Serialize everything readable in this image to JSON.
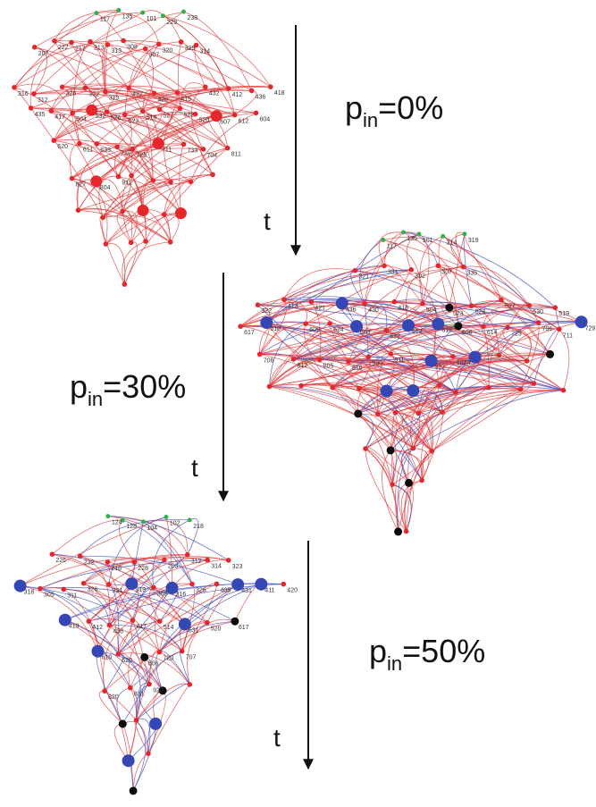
{
  "panels": [
    {
      "label_main": "p",
      "label_sub": "in",
      "label_value": "=0%",
      "node_labels": [
        "117",
        "135",
        "101",
        "229",
        "238",
        "207",
        "222",
        "217",
        "213",
        "313",
        "308",
        "307",
        "320",
        "329",
        "314",
        "316",
        "312",
        "326",
        "332",
        "315",
        "427",
        "420",
        "415",
        "432",
        "412",
        "436",
        "418",
        "435",
        "417",
        "504",
        "532",
        "526",
        "523",
        "518",
        "527",
        "522",
        "520",
        "607",
        "612",
        "604",
        "620",
        "611",
        "633",
        "727",
        "725",
        "711",
        "733",
        "704",
        "811",
        "827",
        "804",
        "911"
      ]
    },
    {
      "label_main": "p",
      "label_sub": "in",
      "label_value": "=30%",
      "node_labels": [
        "117",
        "135",
        "101",
        "214",
        "319",
        "321",
        "331",
        "302",
        "307",
        "335",
        "322",
        "413",
        "421",
        "436",
        "430",
        "418",
        "504",
        "523",
        "528",
        "527",
        "530",
        "519",
        "617",
        "610",
        "609",
        "624",
        "603",
        "632",
        "613",
        "615",
        "608",
        "614",
        "723",
        "706",
        "711",
        "729",
        "706",
        "812",
        "805",
        "816",
        "930",
        "911",
        "927",
        "1024"
      ]
    },
    {
      "label_main": "p",
      "label_sub": "in",
      "label_value": "=50%",
      "node_labels": [
        "124",
        "128",
        "104",
        "102",
        "218",
        "226",
        "232",
        "216",
        "228",
        "203",
        "312",
        "314",
        "323",
        "318",
        "305",
        "311",
        "326",
        "321",
        "319",
        "309",
        "316",
        "326",
        "405",
        "431",
        "411",
        "420",
        "419",
        "412",
        "436",
        "417",
        "514",
        "531",
        "520",
        "617",
        "610",
        "620",
        "606",
        "720",
        "707",
        "820",
        "831",
        "920"
      ]
    }
  ],
  "arrows": [
    {
      "label": "t"
    },
    {
      "label": "t"
    },
    {
      "label": "t"
    }
  ],
  "colors": {
    "edge_red": "#e0383a",
    "edge_blue": "#3b4cc0",
    "node_red": "#e5262b",
    "node_blue": "#3546b5",
    "node_black": "#0a0a0a",
    "node_green": "#2fb34a"
  }
}
